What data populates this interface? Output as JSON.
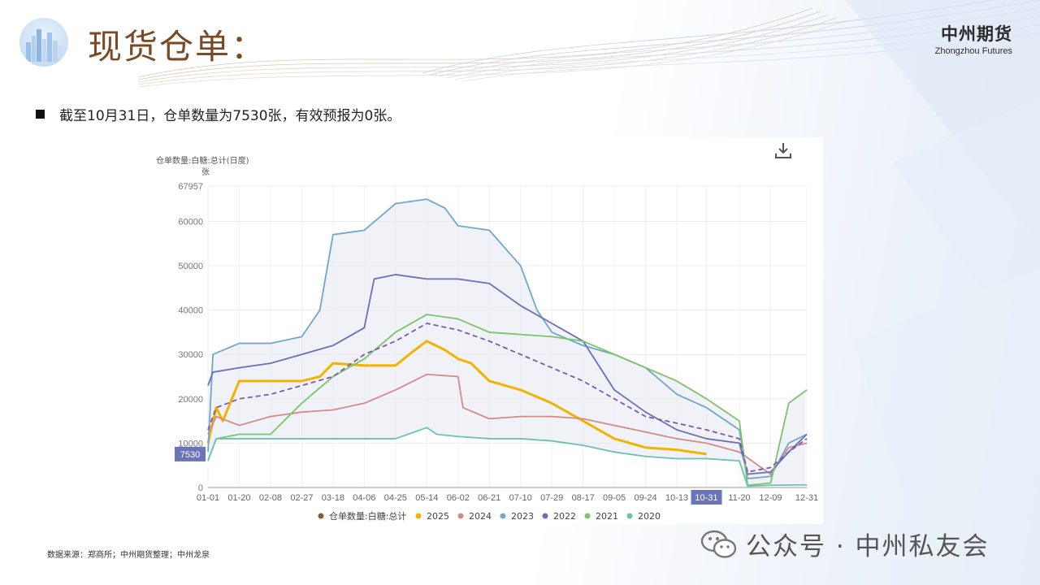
{
  "header": {
    "title": "现货仓单：",
    "brand_cn": "中州期货",
    "brand_en": "Zhongzhou Futures"
  },
  "bullet": {
    "text": "截至10月31日，仓单数量为7530张，有效预报为0张。"
  },
  "footer": {
    "source": "数据来源：郑商所；中州期货整理；中州龙泉",
    "wechat_text": "公众号 · 中州私友会"
  },
  "icons": {
    "download": "download-icon",
    "wechat": "wechat-icon"
  },
  "chart_data": {
    "type": "line",
    "title": "仓单数量:白糖:总计(日度)",
    "ylabel": "张",
    "ylim": [
      0,
      67957
    ],
    "yticks": [
      0,
      10000,
      20000,
      30000,
      40000,
      50000,
      60000,
      67957
    ],
    "xticks": [
      "01-01",
      "01-20",
      "02-08",
      "02-27",
      "03-18",
      "04-06",
      "04-25",
      "05-14",
      "06-02",
      "06-21",
      "07-10",
      "07-29",
      "08-17",
      "09-05",
      "09-24",
      "10-13",
      "10-31",
      "11-20",
      "12-09",
      "12-31"
    ],
    "highlight_x": "10-31",
    "highlight_y": 7530,
    "legend": [
      "仓单数量:白糖:总计",
      "2025",
      "2024",
      "2023",
      "2022",
      "2021",
      "2020"
    ],
    "legend_position": "bottom",
    "series": [
      {
        "name": "2025",
        "color": "#f0b400",
        "x": [
          "01-01",
          "01-06",
          "01-10",
          "01-20",
          "02-08",
          "02-27",
          "03-10",
          "03-18",
          "04-06",
          "04-25",
          "05-05",
          "05-14",
          "05-25",
          "06-02",
          "06-10",
          "06-21",
          "07-10",
          "07-29",
          "08-17",
          "09-05",
          "09-24",
          "10-13",
          "10-31"
        ],
        "values": [
          10000,
          18000,
          15000,
          24000,
          24000,
          24000,
          25000,
          28000,
          27500,
          27500,
          30500,
          33000,
          31000,
          29000,
          28000,
          24000,
          22000,
          19000,
          15000,
          11000,
          9000,
          8500,
          7530
        ]
      },
      {
        "name": "2024",
        "color": "#d48a8a",
        "x": [
          "01-01",
          "01-06",
          "01-20",
          "02-08",
          "02-27",
          "03-18",
          "04-06",
          "04-25",
          "05-14",
          "06-02",
          "06-05",
          "06-21",
          "07-10",
          "07-29",
          "08-17",
          "09-05",
          "09-24",
          "10-13",
          "10-31",
          "11-20",
          "12-09",
          "12-20",
          "12-31"
        ],
        "values": [
          12000,
          16000,
          14000,
          16000,
          17000,
          17500,
          19000,
          22000,
          25500,
          25000,
          18000,
          15500,
          16000,
          16000,
          15500,
          14000,
          12500,
          11000,
          10000,
          8000,
          3000,
          9000,
          10000
        ]
      },
      {
        "name": "2023",
        "color": "#6fa8c8",
        "x": [
          "01-01",
          "01-04",
          "01-20",
          "02-08",
          "02-27",
          "03-10",
          "03-18",
          "04-06",
          "04-25",
          "05-14",
          "05-25",
          "06-02",
          "06-21",
          "07-10",
          "07-20",
          "07-29",
          "08-17",
          "09-05",
          "09-24",
          "10-13",
          "10-31",
          "11-20",
          "11-25",
          "12-09",
          "12-20",
          "12-31"
        ],
        "values": [
          8000,
          30000,
          32500,
          32500,
          34000,
          40000,
          57000,
          58000,
          64000,
          65000,
          63000,
          59000,
          58000,
          50000,
          40000,
          35000,
          32000,
          30000,
          27000,
          21000,
          18000,
          13000,
          2000,
          2500,
          10000,
          12000
        ]
      },
      {
        "name": "2022",
        "color": "#6b6fb8",
        "x": [
          "01-01",
          "01-04",
          "01-20",
          "02-08",
          "02-27",
          "03-18",
          "04-06",
          "04-12",
          "04-25",
          "05-14",
          "06-02",
          "06-21",
          "07-10",
          "07-29",
          "08-17",
          "09-05",
          "09-24",
          "10-13",
          "10-31",
          "11-20",
          "11-25",
          "12-09",
          "12-20",
          "12-31"
        ],
        "values": [
          23000,
          26000,
          27000,
          28000,
          30000,
          32000,
          36000,
          47000,
          48000,
          47000,
          47000,
          46000,
          41000,
          37000,
          33000,
          22000,
          17000,
          13000,
          11000,
          10000,
          3000,
          3500,
          8000,
          12000
        ]
      },
      {
        "name": "2021",
        "color": "#7cc46a",
        "x": [
          "01-01",
          "01-06",
          "01-20",
          "02-08",
          "02-27",
          "03-18",
          "04-06",
          "04-25",
          "05-14",
          "06-02",
          "06-21",
          "07-10",
          "07-29",
          "08-17",
          "09-05",
          "09-24",
          "10-13",
          "10-31",
          "11-20",
          "11-25",
          "12-09",
          "12-20",
          "12-31"
        ],
        "values": [
          6000,
          11000,
          12000,
          12000,
          19000,
          25000,
          29000,
          35000,
          39000,
          38000,
          35000,
          34500,
          34000,
          33000,
          30000,
          27000,
          24000,
          20000,
          15000,
          500,
          1000,
          19000,
          22000
        ]
      },
      {
        "name": "2020",
        "color": "#6cc2b0",
        "x": [
          "01-01",
          "01-06",
          "01-20",
          "02-08",
          "02-27",
          "03-18",
          "04-06",
          "04-25",
          "05-14",
          "05-20",
          "06-02",
          "06-21",
          "07-10",
          "07-29",
          "08-17",
          "09-05",
          "09-24",
          "10-13",
          "10-31",
          "11-20",
          "11-25",
          "12-09",
          "12-31"
        ],
        "values": [
          6000,
          11000,
          11000,
          11000,
          11000,
          11000,
          11000,
          11000,
          13500,
          12000,
          11500,
          11000,
          11000,
          10500,
          9500,
          8000,
          7000,
          6500,
          6500,
          6000,
          300,
          500,
          600
        ]
      },
      {
        "name": "仓单数量:白糖:总计",
        "color": "#7a5ab0",
        "dashed": true,
        "x": [
          "01-01",
          "01-06",
          "01-20",
          "02-08",
          "02-27",
          "03-18",
          "04-06",
          "04-25",
          "05-14",
          "06-02",
          "06-21",
          "07-10",
          "07-29",
          "08-17",
          "09-05",
          "09-24",
          "10-13",
          "10-31",
          "11-20",
          "11-25",
          "12-09",
          "12-20",
          "12-31"
        ],
        "values": [
          13000,
          18000,
          20000,
          21000,
          23000,
          25000,
          30000,
          33000,
          37000,
          35500,
          33000,
          30000,
          27000,
          24000,
          20000,
          16000,
          14500,
          13000,
          11000,
          3500,
          4500,
          8000,
          11000
        ]
      }
    ]
  }
}
